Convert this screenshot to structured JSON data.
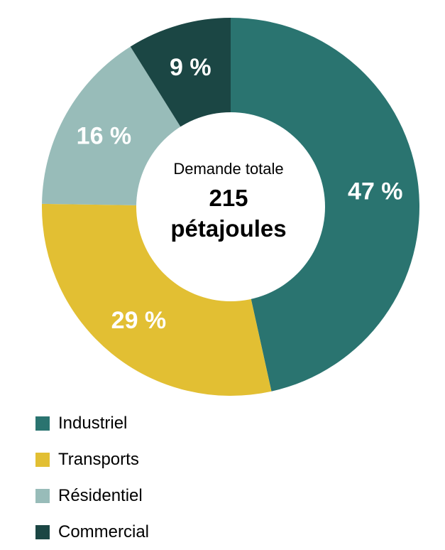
{
  "chart_data": {
    "type": "pie",
    "variant": "donut",
    "center": {
      "caption": "Demande totale",
      "value": "215",
      "unit": "pétajoules"
    },
    "slices": [
      {
        "name": "Industriel",
        "value": 47,
        "label": "47 %",
        "color": "#2a7470"
      },
      {
        "name": "Transports",
        "value": 29,
        "label": "29 %",
        "color": "#e2bf33"
      },
      {
        "name": "Résidentiel",
        "value": 16,
        "label": "16 %",
        "color": "#98bcb9"
      },
      {
        "name": "Commercial",
        "value": 9,
        "label": "9 %",
        "color": "#1b4644"
      }
    ],
    "legend_position": "bottom-left"
  }
}
